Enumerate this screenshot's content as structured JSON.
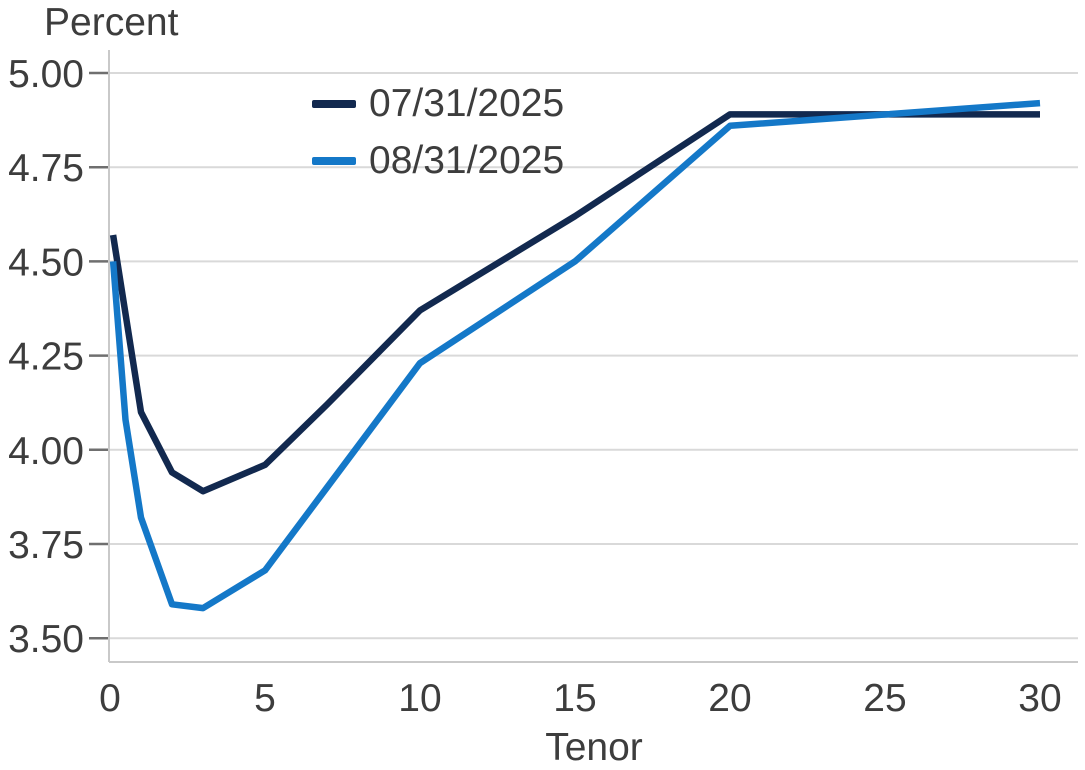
{
  "colors": {
    "background": "#ffffff",
    "text": "#3d3d3d",
    "gridline": "#d9d9d9",
    "axis_line": "#c9c9c9",
    "tick_mark": "#6f6f6f",
    "series_dark": "#12294f",
    "series_light": "#1478c8"
  },
  "chart_data": {
    "type": "line",
    "title": "",
    "ylabel": "Percent",
    "xlabel": "Tenor",
    "x_tick_labels": [
      "0",
      "5",
      "10",
      "15",
      "20",
      "25",
      "30"
    ],
    "x_tick_values": [
      0,
      5,
      10,
      15,
      20,
      25,
      30
    ],
    "y_tick_labels": [
      "5.00",
      "4.75",
      "4.50",
      "4.25",
      "4.00",
      "3.75",
      "3.50"
    ],
    "y_tick_values": [
      5.0,
      4.75,
      4.5,
      4.25,
      4.0,
      3.75,
      3.5
    ],
    "xlim": [
      0,
      31.2
    ],
    "ylim": [
      3.43,
      5.06
    ],
    "grid": "horizontal-only",
    "legend_position": "inside-top-left",
    "series": [
      {
        "name": "07/31/2025",
        "color": "#12294f",
        "points": [
          [
            0.1,
            4.57
          ],
          [
            1,
            4.1
          ],
          [
            2,
            3.94
          ],
          [
            3,
            3.89
          ],
          [
            5,
            3.96
          ],
          [
            7,
            4.12
          ],
          [
            10,
            4.37
          ],
          [
            15,
            4.62
          ],
          [
            20,
            4.89
          ],
          [
            30,
            4.89
          ]
        ]
      },
      {
        "name": "08/31/2025",
        "color": "#1478c8",
        "points": [
          [
            0.1,
            4.5
          ],
          [
            0.5,
            4.08
          ],
          [
            1,
            3.82
          ],
          [
            2,
            3.59
          ],
          [
            3,
            3.58
          ],
          [
            5,
            3.68
          ],
          [
            7,
            3.9
          ],
          [
            10,
            4.23
          ],
          [
            15,
            4.5
          ],
          [
            20,
            4.86
          ],
          [
            30,
            4.92
          ]
        ]
      }
    ]
  }
}
